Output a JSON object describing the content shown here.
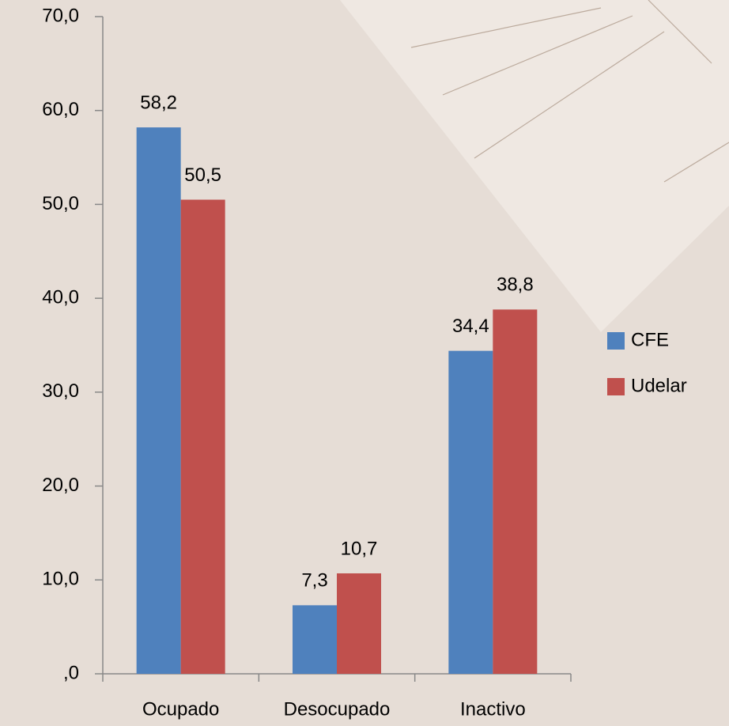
{
  "chart_data": {
    "type": "bar",
    "categories": [
      "Ocupado",
      "Desocupado",
      "Inactivo"
    ],
    "series": [
      {
        "name": "CFE",
        "color": "#4f81bd",
        "values": [
          58.2,
          7.3,
          34.4
        ],
        "value_labels": [
          "58,2",
          "7,3",
          "34,4"
        ]
      },
      {
        "name": "Udelar",
        "color": "#c0504d",
        "values": [
          50.5,
          10.7,
          38.8
        ],
        "value_labels": [
          "50,5",
          "10,7",
          "38,8"
        ]
      }
    ],
    "ylim": [
      0,
      70
    ],
    "yticks": [
      {
        "value": 0,
        "label": ",0"
      },
      {
        "value": 10,
        "label": "10,0"
      },
      {
        "value": 20,
        "label": "20,0"
      },
      {
        "value": 30,
        "label": "30,0"
      },
      {
        "value": 40,
        "label": "40,0"
      },
      {
        "value": 50,
        "label": "50,0"
      },
      {
        "value": 60,
        "label": "60,0"
      },
      {
        "value": 70,
        "label": "70,0"
      }
    ],
    "legend": "right"
  }
}
